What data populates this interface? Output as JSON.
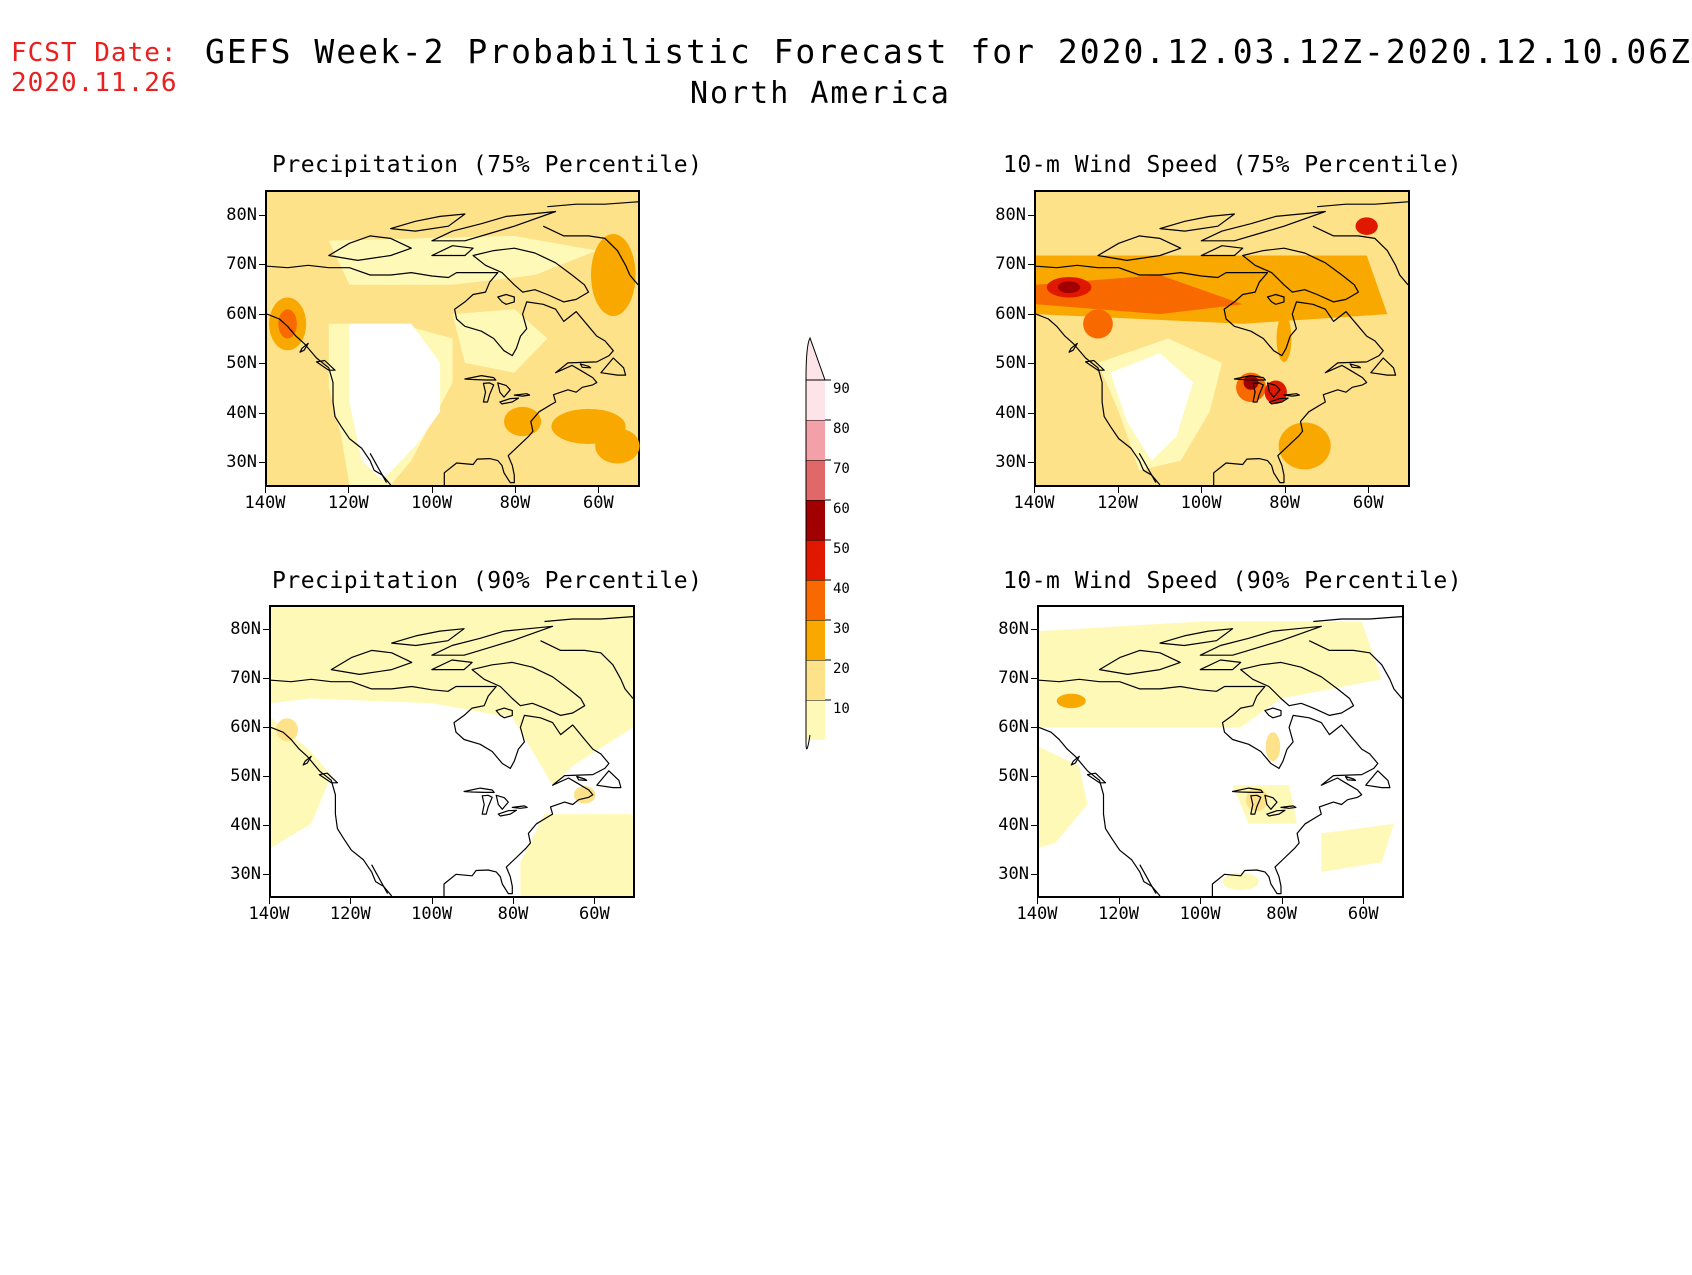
{
  "forecast_date": {
    "label": "FCST Date:",
    "value": "2020.11.26"
  },
  "title": {
    "main": "GEFS Week-2 Probabilistic Forecast for 2020.12.03.12Z-2020.12.10.06Z",
    "region": "North America"
  },
  "axes": {
    "latitude_ticks": [
      "80N",
      "70N",
      "60N",
      "50N",
      "40N",
      "30N"
    ],
    "longitude_ticks": [
      "140W",
      "120W",
      "100W",
      "80W",
      "60W"
    ]
  },
  "panels": [
    {
      "id": "precip-75",
      "title": "Precipitation (75% Percentile)",
      "variable": "Precipitation",
      "percentile": "75%"
    },
    {
      "id": "wind-75",
      "title": "10-m Wind Speed (75% Percentile)",
      "variable": "10-m Wind Speed",
      "percentile": "75%"
    },
    {
      "id": "precip-90",
      "title": "Precipitation (90% Percentile)",
      "variable": "Precipitation",
      "percentile": "90%"
    },
    {
      "id": "wind-90",
      "title": "10-m Wind Speed (90% Percentile)",
      "variable": "10-m Wind Speed",
      "percentile": "90%"
    }
  ],
  "colorbar": {
    "levels": [
      "10",
      "20",
      "30",
      "40",
      "50",
      "60",
      "70",
      "80",
      "90"
    ],
    "colors": [
      "#fff9b8",
      "#fde28a",
      "#f9a800",
      "#f86a00",
      "#e01800",
      "#a00000",
      "#e06868",
      "#f4a0a8",
      "#fde4e8"
    ]
  },
  "colors": {
    "fcst_text": "#e8201f",
    "coastline": "#000000"
  }
}
